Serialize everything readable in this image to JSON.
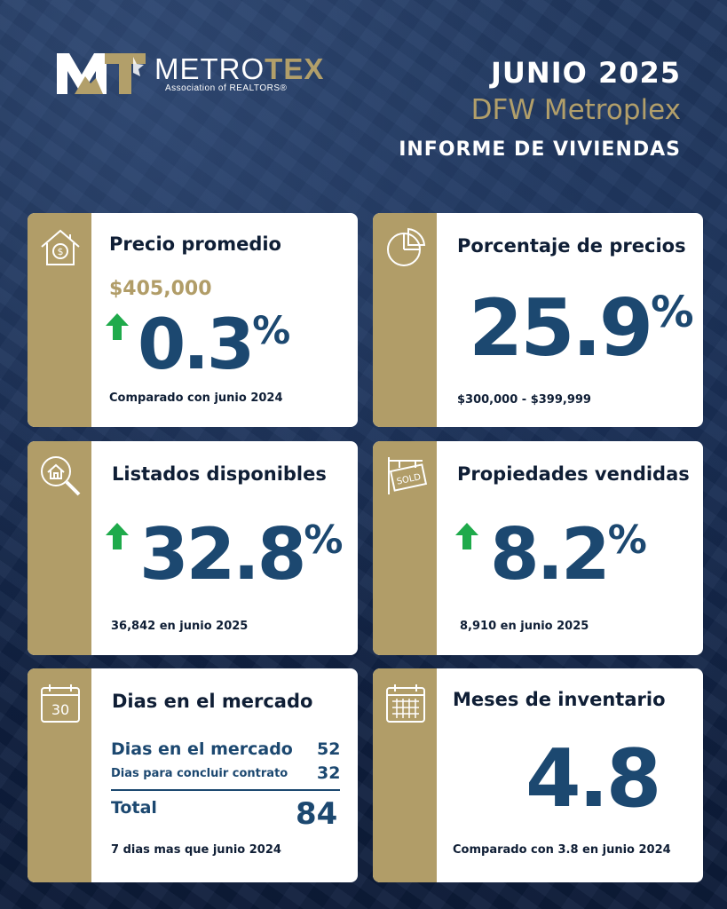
{
  "header": {
    "brand_name_part1": "METRO",
    "brand_name_part2": "TEX",
    "brand_sub": "Association of REALTORS®",
    "month": "JUNIO 2025",
    "region": "DFW Metroplex",
    "report": "INFORME DE VIVIENDAS"
  },
  "colors": {
    "navy": "#1c4870",
    "gold": "#b19d68",
    "up_arrow": "#1faa4b"
  },
  "cards": {
    "avg_price": {
      "icon": "house-dollar-icon",
      "title": "Precio promedio",
      "price": "$405,000",
      "change": "0.3",
      "change_unit": "%",
      "trend": "up",
      "caption": "Comparado con junio 2024"
    },
    "price_pct": {
      "icon": "pie-chart-icon",
      "title": "Porcentaje de precios",
      "value": "25.9",
      "unit": "%",
      "caption": "$300,000 - $399,999"
    },
    "listings": {
      "icon": "house-search-icon",
      "title": "Listados disponibles",
      "change": "32.8",
      "change_unit": "%",
      "trend": "up",
      "caption": "36,842 en junio 2025"
    },
    "sold": {
      "icon": "sold-sign-icon",
      "title": "Propiedades vendidas",
      "change": "8.2",
      "change_unit": "%",
      "trend": "up",
      "caption": "8,910 en junio 2025"
    },
    "dom": {
      "icon": "calendar-30-icon",
      "icon_text": "30",
      "title": "Dias en el mercado",
      "row1_label": "Dias en el mercado",
      "row1_value": "52",
      "row2_label": "Dias para concluir contrato",
      "row2_value": "32",
      "total_label": "Total",
      "total_value": "84",
      "caption": "7 dias mas que junio 2024"
    },
    "inventory": {
      "icon": "calendar-grid-icon",
      "title": "Meses de inventario",
      "value": "4.8",
      "caption": "Comparado con 3.8 en junio 2024"
    }
  }
}
